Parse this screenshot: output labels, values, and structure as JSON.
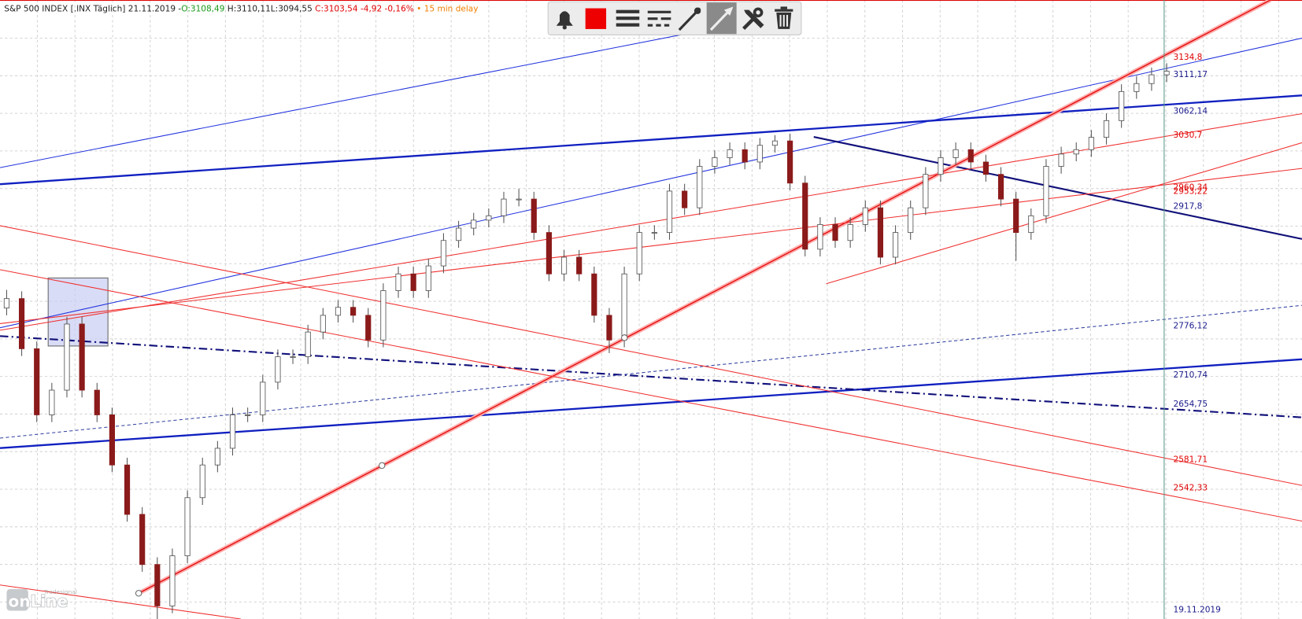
{
  "header": {
    "instrument": "S&P 500 INDEX [.INX Täglich]",
    "date": "21.11.2019",
    "separator": "-",
    "open": "O:3108,49",
    "high": "H:3110,11",
    "low": "L:3094,55",
    "close": "C:3103,54",
    "change": "-4,92",
    "change_pct": "-0,16%",
    "bullet": "•",
    "delay": "15 min delay"
  },
  "chart_data": {
    "type": "candlestick",
    "ylim": [
      2362,
      3214
    ],
    "up_color": "#ffffff",
    "down_color": "#8b1a1a",
    "ohlc": [
      [
        2790,
        2815,
        2780,
        2803
      ],
      [
        2803,
        2813,
        2724,
        2734
      ],
      [
        2734,
        2744,
        2633,
        2643
      ],
      [
        2643,
        2687,
        2633,
        2677
      ],
      [
        2677,
        2778,
        2667,
        2768
      ],
      [
        2768,
        2778,
        2667,
        2677
      ],
      [
        2677,
        2687,
        2633,
        2643
      ],
      [
        2643,
        2653,
        2564,
        2574
      ],
      [
        2574,
        2584,
        2496,
        2506
      ],
      [
        2506,
        2516,
        2427,
        2437
      ],
      [
        2437,
        2447,
        2346,
        2380
      ],
      [
        2380,
        2459,
        2370,
        2449
      ],
      [
        2449,
        2539,
        2439,
        2529
      ],
      [
        2529,
        2584,
        2519,
        2574
      ],
      [
        2574,
        2607,
        2564,
        2597
      ],
      [
        2597,
        2653,
        2587,
        2643
      ],
      [
        2643,
        2653,
        2633,
        2643
      ],
      [
        2643,
        2698,
        2633,
        2688
      ],
      [
        2688,
        2733,
        2678,
        2723
      ],
      [
        2723,
        2733,
        2713,
        2723
      ],
      [
        2723,
        2767,
        2713,
        2757
      ],
      [
        2757,
        2790,
        2747,
        2780
      ],
      [
        2780,
        2801,
        2770,
        2791
      ],
      [
        2791,
        2801,
        2770,
        2780
      ],
      [
        2780,
        2790,
        2736,
        2746
      ],
      [
        2746,
        2824,
        2736,
        2814
      ],
      [
        2814,
        2847,
        2804,
        2837
      ],
      [
        2837,
        2847,
        2804,
        2814
      ],
      [
        2814,
        2858,
        2804,
        2848
      ],
      [
        2848,
        2893,
        2838,
        2883
      ],
      [
        2883,
        2910,
        2873,
        2900
      ],
      [
        2900,
        2921,
        2890,
        2911
      ],
      [
        2911,
        2927,
        2901,
        2917
      ],
      [
        2917,
        2950,
        2907,
        2940
      ],
      [
        2940,
        2954,
        2930,
        2940
      ],
      [
        2940,
        2950,
        2884,
        2894
      ],
      [
        2894,
        2904,
        2827,
        2837
      ],
      [
        2837,
        2870,
        2827,
        2860
      ],
      [
        2860,
        2870,
        2827,
        2837
      ],
      [
        2837,
        2847,
        2770,
        2780
      ],
      [
        2780,
        2790,
        2728,
        2746
      ],
      [
        2746,
        2847,
        2736,
        2837
      ],
      [
        2837,
        2904,
        2827,
        2894
      ],
      [
        2894,
        2904,
        2884,
        2894
      ],
      [
        2894,
        2961,
        2884,
        2951
      ],
      [
        2951,
        2961,
        2918,
        2928
      ],
      [
        2928,
        2995,
        2918,
        2985
      ],
      [
        2985,
        3007,
        2975,
        2997
      ],
      [
        2997,
        3018,
        2987,
        3008
      ],
      [
        3008,
        3018,
        2981,
        2991
      ],
      [
        2991,
        3024,
        2981,
        3014
      ],
      [
        3014,
        3028,
        3004,
        3020
      ],
      [
        3020,
        3030,
        2952,
        2962
      ],
      [
        2962,
        2972,
        2861,
        2871
      ],
      [
        2871,
        2915,
        2861,
        2905
      ],
      [
        2905,
        2915,
        2873,
        2883
      ],
      [
        2883,
        2915,
        2873,
        2905
      ],
      [
        2905,
        2938,
        2895,
        2928
      ],
      [
        2928,
        2938,
        2850,
        2860
      ],
      [
        2860,
        2904,
        2850,
        2894
      ],
      [
        2894,
        2938,
        2884,
        2928
      ],
      [
        2928,
        2984,
        2918,
        2974
      ],
      [
        2974,
        3007,
        2964,
        2997
      ],
      [
        2997,
        3018,
        2987,
        3008
      ],
      [
        3008,
        3018,
        2981,
        2991
      ],
      [
        2991,
        3001,
        2964,
        2974
      ],
      [
        2974,
        2984,
        2930,
        2940
      ],
      [
        2940,
        2950,
        2855,
        2894
      ],
      [
        2894,
        2927,
        2884,
        2917
      ],
      [
        2917,
        2995,
        2907,
        2985
      ],
      [
        2985,
        3012,
        2975,
        3002
      ],
      [
        3002,
        3018,
        2992,
        3008
      ],
      [
        3008,
        3035,
        2998,
        3025
      ],
      [
        3025,
        3058,
        3015,
        3048
      ],
      [
        3048,
        3098,
        3038,
        3088
      ],
      [
        3088,
        3109,
        3078,
        3099
      ],
      [
        3099,
        3121,
        3089,
        3111
      ],
      [
        3111,
        3127,
        3101,
        3116
      ]
    ]
  },
  "price_labels": [
    {
      "text": "3134,8",
      "color": "#e00000"
    },
    {
      "text": "3111,17",
      "color": "#1a1a8c"
    },
    {
      "text": "3062,14",
      "color": "#1a1a8c"
    },
    {
      "text": "3030,7",
      "color": "#e00000"
    },
    {
      "text": "2960,34",
      "color": "#e00000"
    },
    {
      "text": "2953,22",
      "color": "#e00000"
    },
    {
      "text": "2917,8",
      "color": "#1a1a8c"
    },
    {
      "text": "2776,12",
      "color": "#1a1a8c"
    },
    {
      "text": "2710,74",
      "color": "#1a1a8c"
    },
    {
      "text": "2654,75",
      "color": "#1a1a8c"
    },
    {
      "text": "2581,71",
      "color": "#e00000"
    },
    {
      "text": "2542,33",
      "color": "#e00000"
    }
  ],
  "date_label": "19.11.2019",
  "logo": {
    "brand": "Tradesignal",
    "name": "onLine"
  }
}
